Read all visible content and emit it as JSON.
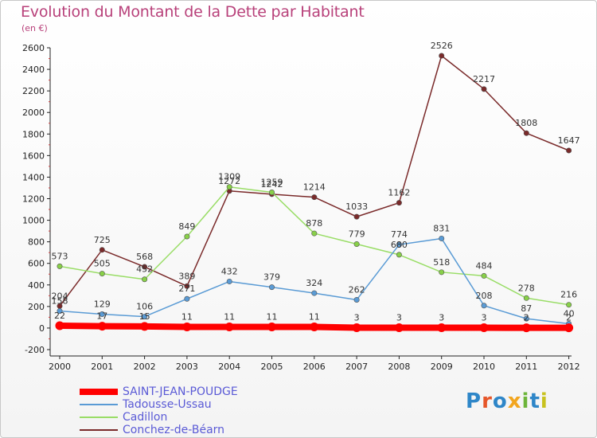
{
  "title": "Evolution du Montant de la Dette par Habitant",
  "unit": "(en €)",
  "logo": {
    "text": "Proxiti",
    "colors": [
      "#2e86c8",
      "#e6562a",
      "#2e86c8",
      "#f2a51e",
      "#6db53a",
      "#2e86c8",
      "#c8c21e"
    ]
  },
  "chart_data": {
    "type": "line",
    "x": [
      2000,
      2001,
      2002,
      2003,
      2004,
      2005,
      2006,
      2007,
      2008,
      2009,
      2010,
      2011,
      2012
    ],
    "ylim": [
      -200,
      2600
    ],
    "yticks": [
      -200,
      0,
      200,
      400,
      600,
      800,
      1000,
      1200,
      1400,
      1600,
      1800,
      2000,
      2200,
      2400,
      2600
    ],
    "grid": false,
    "legend_position": "bottom-left",
    "series": [
      {
        "name": "SAINT-JEAN-POUDGE",
        "color": "#ff0000",
        "marker_fill": "#ff0000",
        "width": 8,
        "values": [
          22,
          17,
          15,
          11,
          11,
          11,
          11,
          3,
          3,
          3,
          3,
          2,
          2
        ],
        "labels": [
          "22",
          "17",
          "15",
          "11",
          "11",
          "11",
          "11",
          "3",
          "3",
          "3",
          "3",
          "2",
          "2"
        ]
      },
      {
        "name": "Tadousse-Ussau",
        "color": "#5a9bd5",
        "marker_fill": "#5a9bd5",
        "width": 1.5,
        "values": [
          158,
          129,
          106,
          271,
          432,
          379,
          324,
          262,
          774,
          831,
          208,
          87,
          40
        ],
        "labels": [
          "158",
          "129",
          "106",
          "271",
          "432",
          "379",
          "324",
          "262",
          "774",
          "831",
          "208",
          "87",
          "40"
        ]
      },
      {
        "name": "Cadillon",
        "color": "#99dd66",
        "marker_fill": "#88d048",
        "width": 1.5,
        "values": [
          573,
          505,
          452,
          849,
          1309,
          1259,
          878,
          779,
          680,
          518,
          484,
          278,
          216
        ],
        "labels": [
          "573",
          "505",
          "452",
          "849",
          "1309",
          "1259",
          "878",
          "779",
          "680",
          "518",
          "484",
          "278",
          "216"
        ]
      },
      {
        "name": "Conchez-de-Béarn",
        "color": "#7a2a2a",
        "marker_fill": "#7a2a2a",
        "width": 1.5,
        "values": [
          204,
          725,
          568,
          389,
          1272,
          1242,
          1214,
          1033,
          1162,
          2526,
          2217,
          1808,
          1647
        ],
        "labels": [
          "204",
          "725",
          "568",
          "389",
          "1272",
          "1242",
          "1214",
          "1033",
          "1162",
          "2526",
          "2217",
          "1808",
          "1647"
        ]
      }
    ]
  }
}
